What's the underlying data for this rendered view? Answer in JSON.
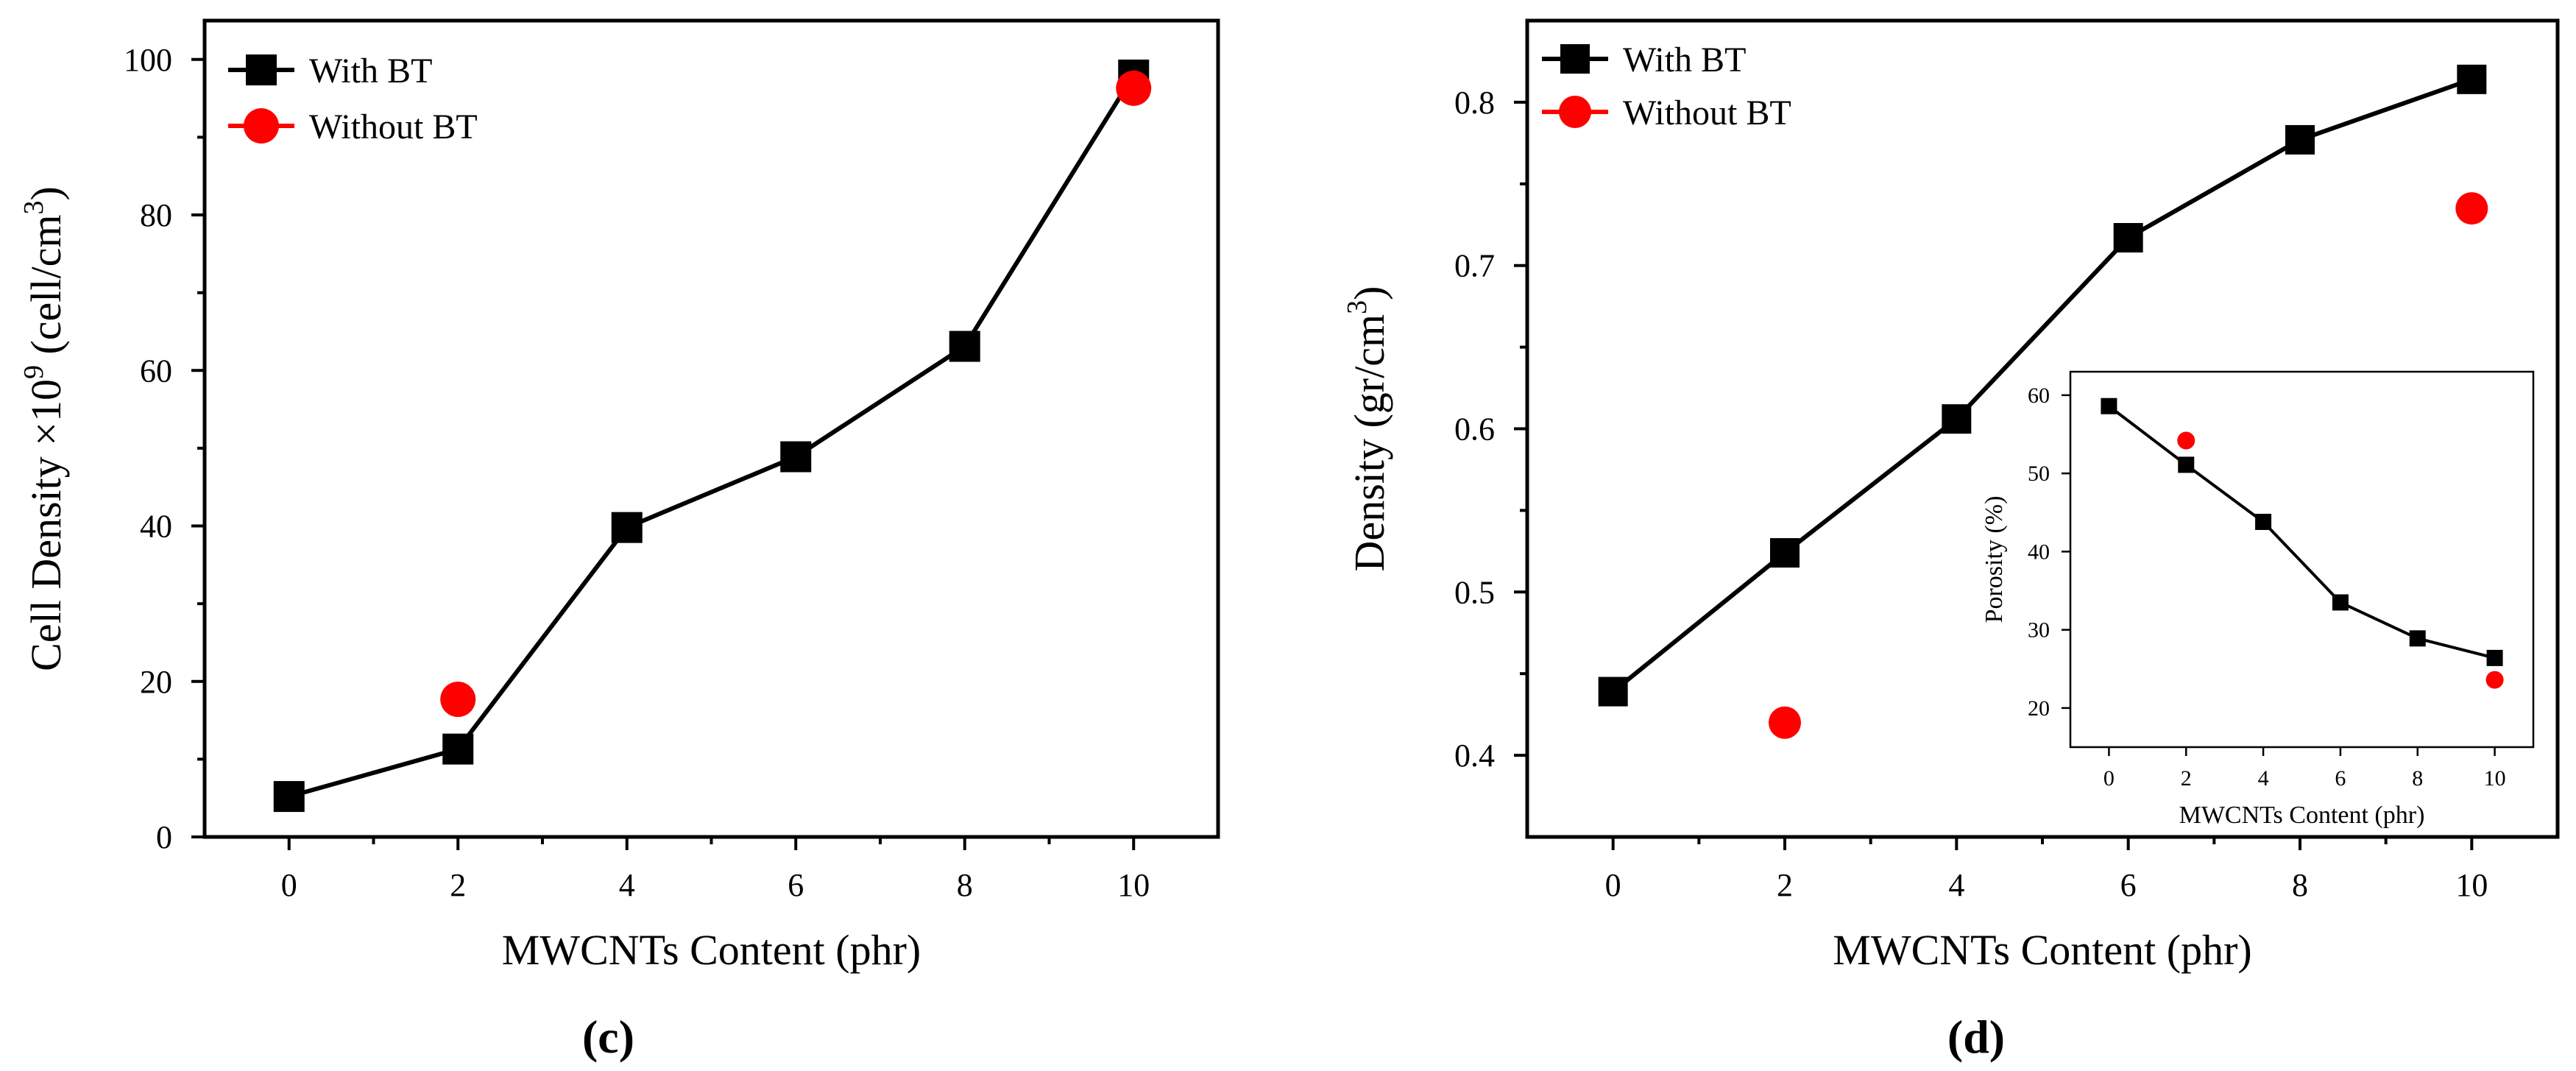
{
  "chart_data": [
    {
      "type": "line",
      "panel_label": "(c)",
      "xlabel": "MWCNTs Content (phr)",
      "ylabel": {
        "main": "Cell Density ×10",
        "exp": "9",
        "unit_pre": " (cell/cm",
        "unit_exp": "3",
        "unit_post": ")"
      },
      "xlim": [
        -1,
        11
      ],
      "ylim": [
        0,
        105
      ],
      "xticks": [
        0,
        2,
        4,
        6,
        8,
        10
      ],
      "yticks": [
        0,
        20,
        40,
        60,
        80,
        100
      ],
      "legend_position": "top-left",
      "series": [
        {
          "name": "With BT",
          "color": "#000000",
          "marker": "square",
          "connected": true,
          "x": [
            0,
            2,
            4,
            6,
            8,
            10
          ],
          "y": [
            5.2,
            11.3,
            39.8,
            48.9,
            63.1,
            98.0
          ]
        },
        {
          "name": "Without BT",
          "color": "#ff0000",
          "marker": "circle",
          "connected": false,
          "x": [
            2,
            10
          ],
          "y": [
            17.7,
            96.3
          ]
        }
      ]
    },
    {
      "type": "line",
      "panel_label": "(d)",
      "xlabel": "MWCNTs Content (phr)",
      "ylabel": {
        "main": "Density (gr/cm",
        "exp": "3",
        "unit_pre": ")",
        "unit_exp": "",
        "unit_post": ""
      },
      "xlim": [
        -1,
        11
      ],
      "ylim": [
        0.35,
        0.85
      ],
      "xticks": [
        0,
        2,
        4,
        6,
        8,
        10
      ],
      "yticks": [
        0.4,
        0.5,
        0.6,
        0.7,
        0.8
      ],
      "legend_position": "top-left",
      "series": [
        {
          "name": "With BT",
          "color": "#000000",
          "marker": "square",
          "connected": true,
          "x": [
            0,
            2,
            4,
            6,
            8,
            10
          ],
          "y": [
            0.439,
            0.524,
            0.606,
            0.717,
            0.777,
            0.814
          ]
        },
        {
          "name": "Without BT",
          "color": "#ff0000",
          "marker": "circle",
          "connected": false,
          "x": [
            2,
            10
          ],
          "y": [
            0.42,
            0.735
          ]
        }
      ],
      "inset": {
        "type": "line",
        "xlabel": "MWCNTs Content (phr)",
        "ylabel": "Porosity (%)",
        "xlim": [
          -1,
          11
        ],
        "ylim": [
          15,
          63
        ],
        "xticks": [
          0,
          2,
          4,
          6,
          8,
          10
        ],
        "yticks": [
          20,
          30,
          40,
          50,
          60
        ],
        "series": [
          {
            "name": "With BT",
            "color": "#000000",
            "marker": "square",
            "connected": true,
            "x": [
              0,
              2,
              4,
              6,
              8,
              10
            ],
            "y": [
              58.6,
              51.1,
              43.8,
              33.5,
              28.9,
              26.4
            ]
          },
          {
            "name": "Without BT",
            "color": "#ff0000",
            "marker": "circle",
            "connected": false,
            "x": [
              2,
              10
            ],
            "y": [
              54.2,
              23.6
            ]
          }
        ]
      }
    }
  ]
}
